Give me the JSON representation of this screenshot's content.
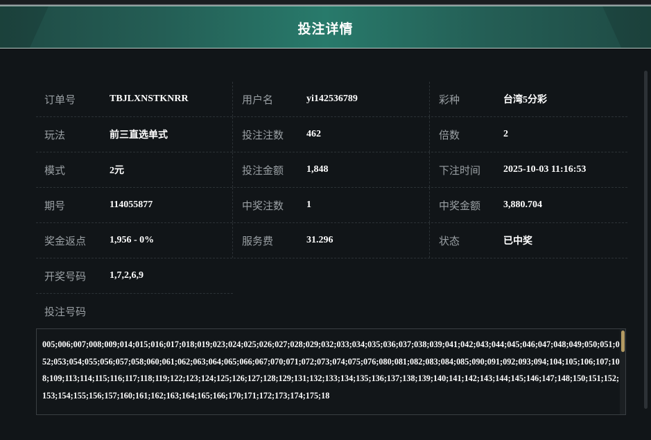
{
  "header": {
    "title": "投注详情"
  },
  "details": [
    [
      {
        "label": "订单号",
        "value": "TBJLXNSTKNRR"
      },
      {
        "label": "用户名",
        "value": "yi142536789"
      },
      {
        "label": "彩种",
        "value": "台湾5分彩"
      }
    ],
    [
      {
        "label": "玩法",
        "value": "前三直选单式"
      },
      {
        "label": "投注注数",
        "value": "462"
      },
      {
        "label": "倍数",
        "value": "2"
      }
    ],
    [
      {
        "label": "模式",
        "value": "2元"
      },
      {
        "label": "投注金额",
        "value": "1,848"
      },
      {
        "label": "下注时间",
        "value": "2025-10-03 11:16:53"
      }
    ],
    [
      {
        "label": "期号",
        "value": "114055877"
      },
      {
        "label": "中奖注数",
        "value": "1"
      },
      {
        "label": "中奖金额",
        "value": "3,880.704"
      }
    ],
    [
      {
        "label": "奖金返点",
        "value": "1,956 - 0%"
      },
      {
        "label": "服务费",
        "value": "31.296"
      },
      {
        "label": "状态",
        "value": "已中奖"
      }
    ],
    [
      {
        "label": "开奖号码",
        "value": "1,7,2,6,9"
      }
    ]
  ],
  "bet_numbers": {
    "label": "投注号码",
    "value": "005;006;007;008;009;014;015;016;017;018;019;023;024;025;026;027;028;029;032;033;034;035;036;037;038;039;041;042;043;044;045;046;047;048;049;050;051;052;053;054;055;056;057;058;060;061;062;063;064;065;066;067;070;071;072;073;074;075;076;080;081;082;083;084;085;090;091;092;093;094;104;105;106;107;108;109;113;114;115;116;117;118;119;122;123;124;125;126;127;128;129;131;132;133;134;135;136;137;138;139;140;141;142;143;144;145;146;147;148;150;151;152;153;154;155;156;157;160;161;162;163;164;165;166;170;171;172;173;174;175;18"
  },
  "colors": {
    "header": "#287a6b",
    "background": "#111518",
    "scroll_thumb": "#b39a62"
  }
}
